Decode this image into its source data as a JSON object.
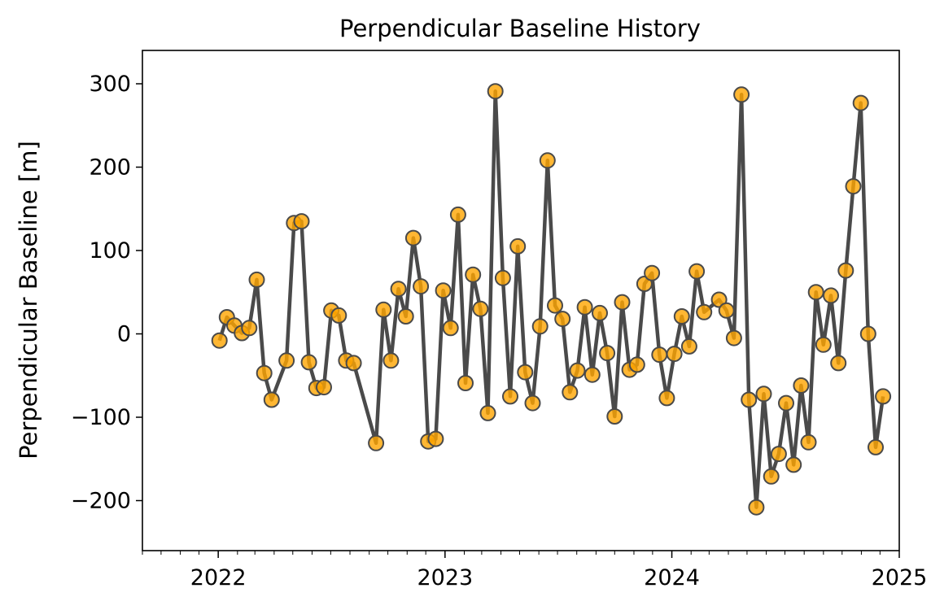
{
  "chart_data": {
    "type": "line",
    "title": "Perpendicular Baseline History",
    "xlabel": "",
    "ylabel": "Perpendicular Baseline [m]",
    "x_axis": "date",
    "xlim": [
      "2021-09-01",
      "2025-01-01"
    ],
    "ylim": [
      -260,
      340
    ],
    "x_ticks": [
      {
        "date": "2022-01-01",
        "label": "2022"
      },
      {
        "date": "2023-01-01",
        "label": "2023"
      },
      {
        "date": "2024-01-01",
        "label": "2024"
      },
      {
        "date": "2025-01-01",
        "label": "2025"
      }
    ],
    "y_ticks": [
      {
        "value": -200,
        "label": "−200"
      },
      {
        "value": -100,
        "label": "−100"
      },
      {
        "value": 0,
        "label": "0"
      },
      {
        "value": 100,
        "label": "100"
      },
      {
        "value": 200,
        "label": "200"
      },
      {
        "value": 300,
        "label": "300"
      }
    ],
    "grid": false,
    "line_color": "#4a4a4a",
    "marker_color": "#FFA500",
    "marker_edge_color": "#4a4a4a",
    "series": [
      {
        "points": [
          {
            "date": "2022-01-03",
            "y": -8
          },
          {
            "date": "2022-01-15",
            "y": 20
          },
          {
            "date": "2022-01-27",
            "y": 10
          },
          {
            "date": "2022-02-08",
            "y": 1
          },
          {
            "date": "2022-02-20",
            "y": 7
          },
          {
            "date": "2022-03-04",
            "y": 65
          },
          {
            "date": "2022-03-16",
            "y": -47
          },
          {
            "date": "2022-03-28",
            "y": -79
          },
          {
            "date": "2022-04-21",
            "y": -32
          },
          {
            "date": "2022-05-03",
            "y": 133
          },
          {
            "date": "2022-05-15",
            "y": 135
          },
          {
            "date": "2022-05-27",
            "y": -34
          },
          {
            "date": "2022-06-08",
            "y": -65
          },
          {
            "date": "2022-06-20",
            "y": -64
          },
          {
            "date": "2022-07-02",
            "y": 28
          },
          {
            "date": "2022-07-14",
            "y": 22
          },
          {
            "date": "2022-07-26",
            "y": -32
          },
          {
            "date": "2022-08-07",
            "y": -35
          },
          {
            "date": "2022-09-12",
            "y": -131
          },
          {
            "date": "2022-09-24",
            "y": 29
          },
          {
            "date": "2022-10-06",
            "y": -32
          },
          {
            "date": "2022-10-18",
            "y": 54
          },
          {
            "date": "2022-10-30",
            "y": 21
          },
          {
            "date": "2022-11-11",
            "y": 115
          },
          {
            "date": "2022-11-23",
            "y": 57
          },
          {
            "date": "2022-12-05",
            "y": -129
          },
          {
            "date": "2022-12-17",
            "y": -126
          },
          {
            "date": "2022-12-29",
            "y": 52
          },
          {
            "date": "2023-01-10",
            "y": 7
          },
          {
            "date": "2023-01-22",
            "y": 143
          },
          {
            "date": "2023-02-03",
            "y": -59
          },
          {
            "date": "2023-02-15",
            "y": 71
          },
          {
            "date": "2023-02-27",
            "y": 30
          },
          {
            "date": "2023-03-11",
            "y": -95
          },
          {
            "date": "2023-03-23",
            "y": 291
          },
          {
            "date": "2023-04-04",
            "y": 67
          },
          {
            "date": "2023-04-16",
            "y": -75
          },
          {
            "date": "2023-04-28",
            "y": 105
          },
          {
            "date": "2023-05-10",
            "y": -46
          },
          {
            "date": "2023-05-22",
            "y": -83
          },
          {
            "date": "2023-06-03",
            "y": 9
          },
          {
            "date": "2023-06-15",
            "y": 208
          },
          {
            "date": "2023-06-27",
            "y": 34
          },
          {
            "date": "2023-07-09",
            "y": 18
          },
          {
            "date": "2023-07-21",
            "y": -70
          },
          {
            "date": "2023-08-02",
            "y": -44
          },
          {
            "date": "2023-08-14",
            "y": 32
          },
          {
            "date": "2023-08-26",
            "y": -49
          },
          {
            "date": "2023-09-07",
            "y": 25
          },
          {
            "date": "2023-09-19",
            "y": -23
          },
          {
            "date": "2023-10-01",
            "y": -99
          },
          {
            "date": "2023-10-13",
            "y": 38
          },
          {
            "date": "2023-10-25",
            "y": -43
          },
          {
            "date": "2023-11-06",
            "y": -37
          },
          {
            "date": "2023-11-18",
            "y": 60
          },
          {
            "date": "2023-11-30",
            "y": 73
          },
          {
            "date": "2023-12-12",
            "y": -25
          },
          {
            "date": "2023-12-24",
            "y": -77
          },
          {
            "date": "2024-01-05",
            "y": -24
          },
          {
            "date": "2024-01-17",
            "y": 21
          },
          {
            "date": "2024-01-29",
            "y": -15
          },
          {
            "date": "2024-02-10",
            "y": 75
          },
          {
            "date": "2024-02-22",
            "y": 26
          },
          {
            "date": "2024-03-17",
            "y": 41
          },
          {
            "date": "2024-03-29",
            "y": 28
          },
          {
            "date": "2024-04-10",
            "y": -5
          },
          {
            "date": "2024-04-22",
            "y": 287
          },
          {
            "date": "2024-05-04",
            "y": -79
          },
          {
            "date": "2024-05-16",
            "y": -208
          },
          {
            "date": "2024-05-28",
            "y": -72
          },
          {
            "date": "2024-06-09",
            "y": -171
          },
          {
            "date": "2024-06-21",
            "y": -144
          },
          {
            "date": "2024-07-03",
            "y": -83
          },
          {
            "date": "2024-07-15",
            "y": -157
          },
          {
            "date": "2024-07-27",
            "y": -62
          },
          {
            "date": "2024-08-08",
            "y": -130
          },
          {
            "date": "2024-08-20",
            "y": 50
          },
          {
            "date": "2024-09-01",
            "y": -13
          },
          {
            "date": "2024-09-13",
            "y": 46
          },
          {
            "date": "2024-09-25",
            "y": -35
          },
          {
            "date": "2024-10-07",
            "y": 76
          },
          {
            "date": "2024-10-19",
            "y": 177
          },
          {
            "date": "2024-10-31",
            "y": 277
          },
          {
            "date": "2024-11-12",
            "y": 0
          },
          {
            "date": "2024-11-24",
            "y": -136
          },
          {
            "date": "2024-12-06",
            "y": -75
          }
        ]
      }
    ]
  }
}
